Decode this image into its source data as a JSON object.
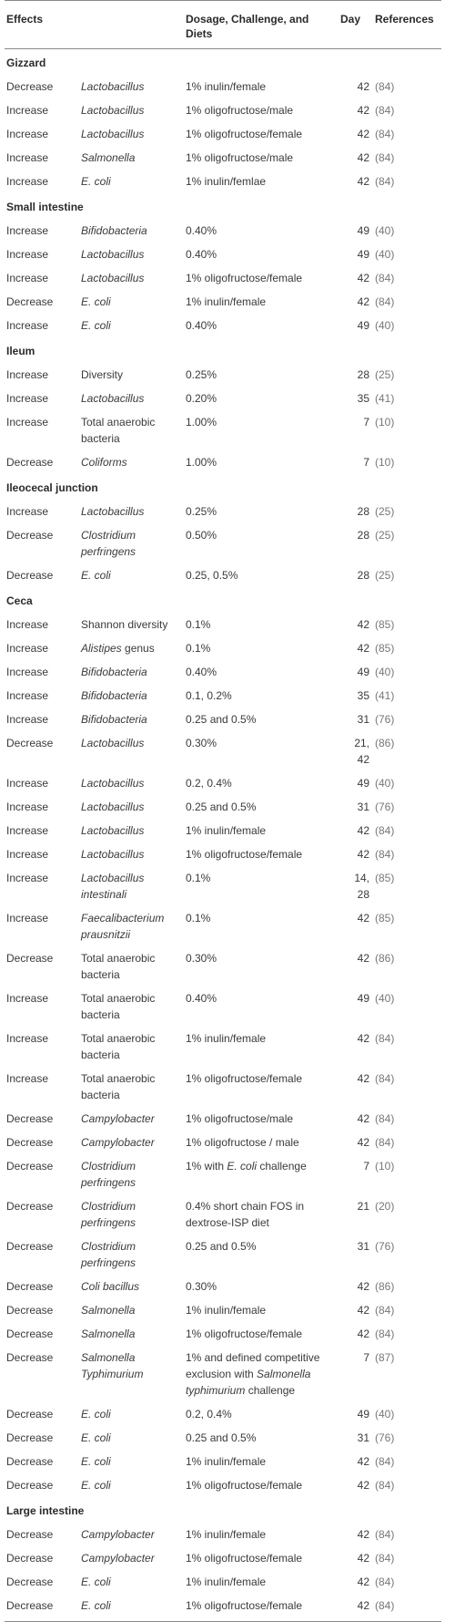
{
  "headers": {
    "effects": "Effects",
    "dosage": "Dosage, Challenge, and Diets",
    "day": "Day",
    "references": "References"
  },
  "sections": [
    {
      "title": "Gizzard",
      "rows": [
        {
          "effect": "Decrease",
          "organism": "Lactobacillus",
          "italic": true,
          "dosage": "1% inulin/female",
          "day": "42",
          "ref": "(84)"
        },
        {
          "effect": "Increase",
          "organism": "Lactobacillus",
          "italic": true,
          "dosage": "1% oligofructose/male",
          "day": "42",
          "ref": "(84)"
        },
        {
          "effect": "Increase",
          "organism": "Lactobacillus",
          "italic": true,
          "dosage": "1% oligofructose/female",
          "day": "42",
          "ref": "(84)"
        },
        {
          "effect": "Increase",
          "organism": "Salmonella",
          "italic": true,
          "dosage": "1% oligofructose/male",
          "day": "42",
          "ref": "(84)"
        },
        {
          "effect": "Increase",
          "organism": "E. coli",
          "italic": true,
          "dosage": "1% inulin/femlae",
          "day": "42",
          "ref": "(84)"
        }
      ]
    },
    {
      "title": "Small intestine",
      "rows": [
        {
          "effect": "Increase",
          "organism": "Bifidobacteria",
          "italic": true,
          "dosage": "0.40%",
          "day": "49",
          "ref": "(40)"
        },
        {
          "effect": "Increase",
          "organism": "Lactobacillus",
          "italic": true,
          "dosage": "0.40%",
          "day": "49",
          "ref": "(40)"
        },
        {
          "effect": "Increase",
          "organism": "Lactobacillus",
          "italic": true,
          "dosage": "1% oligofructose/female",
          "day": "42",
          "ref": "(84)"
        },
        {
          "effect": "Decrease",
          "organism": "E. coli",
          "italic": true,
          "dosage": "1% inulin/female",
          "day": "42",
          "ref": "(84)"
        },
        {
          "effect": "Increase",
          "organism": "E. coli",
          "italic": true,
          "dosage": "0.40%",
          "day": "49",
          "ref": "(40)"
        }
      ]
    },
    {
      "title": "Ileum",
      "rows": [
        {
          "effect": "Increase",
          "organism": "Diversity",
          "italic": false,
          "dosage": "0.25%",
          "day": "28",
          "ref": "(25)"
        },
        {
          "effect": "Increase",
          "organism": "Lactobacillus",
          "italic": true,
          "dosage": "0.20%",
          "day": "35",
          "ref": "(41)"
        },
        {
          "effect": "Increase",
          "organism": "Total anaerobic bacteria",
          "italic": false,
          "dosage": "1.00%",
          "day": "7",
          "ref": "(10)"
        },
        {
          "effect": "Decrease",
          "organism": "Coliforms",
          "italic": true,
          "dosage": "1.00%",
          "day": "7",
          "ref": "(10)"
        }
      ]
    },
    {
      "title": "Ileocecal junction",
      "rows": [
        {
          "effect": "Increase",
          "organism": "Lactobacillus",
          "italic": true,
          "dosage": "0.25%",
          "day": "28",
          "ref": "(25)"
        },
        {
          "effect": "Decrease",
          "organism": "Clostridium perfringens",
          "italic": true,
          "dosage": "0.50%",
          "day": "28",
          "ref": "(25)"
        },
        {
          "effect": "Decrease",
          "organism": "E. coli",
          "italic": true,
          "dosage": "0.25, 0.5%",
          "day": "28",
          "ref": "(25)"
        }
      ]
    },
    {
      "title": "Ceca",
      "rows": [
        {
          "effect": "Increase",
          "organism": "Shannon diversity",
          "italic": false,
          "dosage": "0.1%",
          "day": "42",
          "ref": "(85)"
        },
        {
          "effect": "Increase",
          "organism": "Alistipes",
          "organism_suffix": " genus",
          "italic": true,
          "dosage": "0.1%",
          "day": "42",
          "ref": "(85)"
        },
        {
          "effect": "Increase",
          "organism": "Bifidobacteria",
          "italic": true,
          "dosage": "0.40%",
          "day": "49",
          "ref": "(40)"
        },
        {
          "effect": "Increase",
          "organism": "Bifidobacteria",
          "italic": true,
          "dosage": "0.1, 0.2%",
          "day": "35",
          "ref": "(41)"
        },
        {
          "effect": "Increase",
          "organism": "Bifidobacteria",
          "italic": true,
          "dosage": "0.25 and 0.5%",
          "day": "31",
          "ref": "(76)"
        },
        {
          "effect": "Decrease",
          "organism": "Lactobacillus",
          "italic": true,
          "dosage": "0.30%",
          "day": "21, 42",
          "ref": "(86)"
        },
        {
          "effect": "Increase",
          "organism": "Lactobacillus",
          "italic": true,
          "dosage": "0.2, 0.4%",
          "day": "49",
          "ref": "(40)"
        },
        {
          "effect": "Increase",
          "organism": "Lactobacillus",
          "italic": true,
          "dosage": "0.25 and 0.5%",
          "day": "31",
          "ref": "(76)"
        },
        {
          "effect": "Increase",
          "organism": "Lactobacillus",
          "italic": true,
          "dosage": "1% inulin/female",
          "day": "42",
          "ref": "(84)"
        },
        {
          "effect": "Increase",
          "organism": "Lactobacillus",
          "italic": true,
          "dosage": "1% oligofructose/female",
          "day": "42",
          "ref": "(84)"
        },
        {
          "effect": "Increase",
          "organism": "Lactobacillus intestinali",
          "italic": true,
          "dosage": "0.1%",
          "day": "14, 28",
          "ref": "(85)"
        },
        {
          "effect": "Increase",
          "organism": "Faecalibacterium prausnitzii",
          "italic": true,
          "dosage": "0.1%",
          "day": "42",
          "ref": "(85)"
        },
        {
          "effect": "Decrease",
          "organism": "Total anaerobic bacteria",
          "italic": false,
          "dosage": "0.30%",
          "day": "42",
          "ref": "(86)"
        },
        {
          "effect": "Increase",
          "organism": "Total anaerobic bacteria",
          "italic": false,
          "dosage": "0.40%",
          "day": "49",
          "ref": "(40)"
        },
        {
          "effect": "Increase",
          "organism": "Total anaerobic bacteria",
          "italic": false,
          "dosage": "1% inulin/female",
          "day": "42",
          "ref": "(84)"
        },
        {
          "effect": "Increase",
          "organism": "Total anaerobic bacteria",
          "italic": false,
          "dosage": "1% oligofructose/female",
          "day": "42",
          "ref": "(84)"
        },
        {
          "effect": "Decrease",
          "organism": "Campylobacter",
          "italic": true,
          "dosage": "1% oligofructose/male",
          "day": "42",
          "ref": "(84)"
        },
        {
          "effect": "Decrease",
          "organism": "Campylobacter",
          "italic": true,
          "dosage": "1% oligofructose / male",
          "day": "42",
          "ref": "(84)"
        },
        {
          "effect": "Decrease",
          "organism": "Clostridium perfringens",
          "italic": true,
          "dosage": "1% with ",
          "dosage_italic": "E. coli",
          "dosage_suffix": " challenge",
          "day": "7",
          "ref": "(10)"
        },
        {
          "effect": "Decrease",
          "organism": "Clostridium perfringens",
          "italic": true,
          "dosage": "0.4% short chain FOS in dextrose-ISP diet",
          "day": "21",
          "ref": "(20)"
        },
        {
          "effect": "Decrease",
          "organism": "Clostridium perfringens",
          "italic": true,
          "dosage": "0.25 and 0.5%",
          "day": "31",
          "ref": "(76)"
        },
        {
          "effect": "Decrease",
          "organism": "Coli bacillus",
          "italic": true,
          "dosage": "0.30%",
          "day": "42",
          "ref": "(86)"
        },
        {
          "effect": "Decrease",
          "organism": "Salmonella",
          "italic": true,
          "dosage": "1% inulin/female",
          "day": "42",
          "ref": "(84)"
        },
        {
          "effect": "Decrease",
          "organism": "Salmonella",
          "italic": true,
          "dosage": "1% oligofructose/female",
          "day": "42",
          "ref": "(84)"
        },
        {
          "effect": "Decrease",
          "organism": "Salmonella Typhimurium",
          "italic": true,
          "dosage": "1% and defined competitive exclusion with ",
          "dosage_italic": "Salmonella typhimurium",
          "dosage_suffix": " challenge",
          "day": "7",
          "ref": "(87)"
        },
        {
          "effect": "Decrease",
          "organism": "E. coli",
          "italic": true,
          "dosage": "0.2, 0.4%",
          "day": "49",
          "ref": "(40)"
        },
        {
          "effect": "Decrease",
          "organism": "E. coli",
          "italic": true,
          "dosage": "0.25 and 0.5%",
          "day": "31",
          "ref": "(76)"
        },
        {
          "effect": "Decrease",
          "organism": "E. coli",
          "italic": true,
          "dosage": "1% inulin/female",
          "day": "42",
          "ref": "(84)"
        },
        {
          "effect": "Decrease",
          "organism": "E. coli",
          "italic": true,
          "dosage": "1% oligofructose/female",
          "day": "42",
          "ref": "(84)"
        }
      ]
    },
    {
      "title": "Large intestine",
      "rows": [
        {
          "effect": "Decrease",
          "organism": "Campylobacter",
          "italic": true,
          "dosage": "1% inulin/female",
          "day": "42",
          "ref": "(84)"
        },
        {
          "effect": "Decrease",
          "organism": "Campylobacter",
          "italic": true,
          "dosage": "1% oligofructose/female",
          "day": "42",
          "ref": "(84)"
        },
        {
          "effect": "Decrease",
          "organism": "E. coli",
          "italic": true,
          "dosage": "1% inulin/female",
          "day": "42",
          "ref": "(84)"
        },
        {
          "effect": "Decrease",
          "organism": "E. coli",
          "italic": true,
          "dosage": "1% oligofructose/female",
          "day": "42",
          "ref": "(84)"
        }
      ]
    }
  ]
}
